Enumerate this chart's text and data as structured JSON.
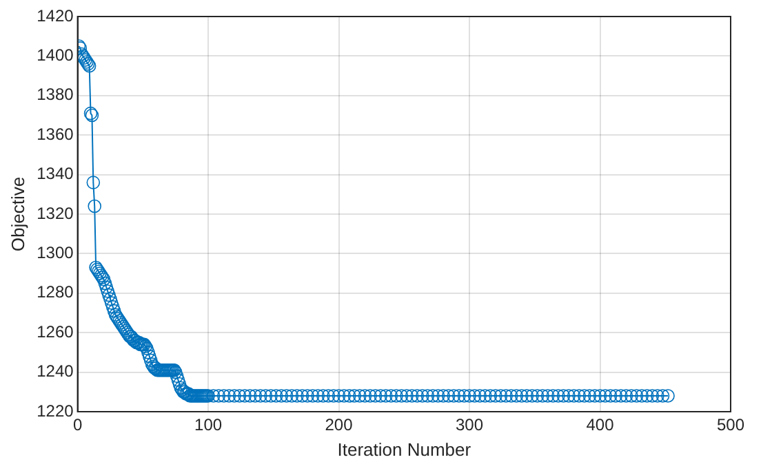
{
  "chart_data": {
    "type": "line",
    "xlabel": "Iteration Number",
    "ylabel": "Objective",
    "xlim": [
      0,
      500
    ],
    "xticks": [
      0,
      100,
      200,
      300,
      400,
      500
    ],
    "ylim": [
      1220,
      1420
    ],
    "yticks": [
      1220,
      1240,
      1260,
      1280,
      1300,
      1320,
      1340,
      1360,
      1380,
      1400,
      1420
    ],
    "grid": true,
    "legend": false,
    "marker": "circle",
    "line_style": "solid",
    "series": [
      {
        "color": "#0072bd",
        "x": [
          1,
          2,
          3,
          4,
          5,
          6,
          7,
          8,
          9,
          10,
          11,
          12,
          13,
          14,
          15,
          16,
          17,
          18,
          19,
          20,
          21,
          22,
          23,
          24,
          25,
          26,
          27,
          28,
          29,
          30,
          31,
          32,
          33,
          34,
          35,
          36,
          37,
          38,
          39,
          40,
          41,
          42,
          43,
          44,
          45,
          46,
          47,
          48,
          49,
          50,
          51,
          52,
          53,
          54,
          55,
          56,
          57,
          58,
          59,
          60,
          61,
          62,
          63,
          64,
          65,
          66,
          67,
          68,
          69,
          70,
          71,
          72,
          73,
          74,
          75,
          76,
          77,
          78,
          79,
          80,
          81,
          82,
          83,
          84,
          85,
          86,
          87,
          88,
          89,
          90,
          91,
          92,
          93,
          94,
          95,
          96,
          97,
          98,
          99,
          100,
          104,
          108,
          112,
          116,
          120,
          124,
          128,
          132,
          136,
          140,
          144,
          148,
          152,
          156,
          160,
          164,
          168,
          172,
          176,
          180,
          184,
          188,
          192,
          196,
          200,
          204,
          208,
          212,
          216,
          220,
          224,
          228,
          232,
          236,
          240,
          244,
          248,
          252,
          256,
          260,
          264,
          268,
          272,
          276,
          280,
          284,
          288,
          292,
          296,
          300,
          304,
          308,
          312,
          316,
          320,
          324,
          328,
          332,
          336,
          340,
          344,
          348,
          352,
          356,
          360,
          364,
          368,
          372,
          376,
          380,
          384,
          388,
          392,
          396,
          400,
          404,
          408,
          412,
          416,
          420,
          424,
          428,
          432,
          436,
          440,
          444,
          448,
          452
        ],
        "values": [
          1405,
          1404,
          1401,
          1400,
          1399,
          1398,
          1397,
          1396,
          1395,
          1371,
          1370,
          1336,
          1324,
          1293,
          1292,
          1291,
          1290,
          1289,
          1288,
          1287,
          1285,
          1283,
          1281,
          1279,
          1277,
          1275,
          1273,
          1271,
          1269,
          1268,
          1267,
          1266,
          1265,
          1264,
          1263,
          1262,
          1261,
          1260,
          1259,
          1258,
          1258,
          1257,
          1256,
          1256,
          1255,
          1255,
          1255,
          1254,
          1254,
          1254,
          1254,
          1253,
          1252,
          1250,
          1248,
          1246,
          1244,
          1243,
          1242,
          1242,
          1241,
          1241,
          1241,
          1241,
          1241,
          1241,
          1241,
          1241,
          1241,
          1241,
          1241,
          1241,
          1241,
          1241,
          1240,
          1238,
          1236,
          1234,
          1232,
          1231,
          1230,
          1230,
          1229,
          1229,
          1229,
          1228,
          1228,
          1228,
          1228,
          1228,
          1228,
          1228,
          1228,
          1228,
          1228,
          1228,
          1228,
          1228,
          1228,
          1228,
          1228,
          1228,
          1228,
          1228,
          1228,
          1228,
          1228,
          1228,
          1228,
          1228,
          1228,
          1228,
          1228,
          1228,
          1228,
          1228,
          1228,
          1228,
          1228,
          1228,
          1228,
          1228,
          1228,
          1228,
          1228,
          1228,
          1228,
          1228,
          1228,
          1228,
          1228,
          1228,
          1228,
          1228,
          1228,
          1228,
          1228,
          1228,
          1228,
          1228,
          1228,
          1228,
          1228,
          1228,
          1228,
          1228,
          1228,
          1228,
          1228,
          1228,
          1228,
          1228,
          1228,
          1228,
          1228,
          1228,
          1228,
          1228,
          1228,
          1228,
          1228,
          1228,
          1228,
          1228,
          1228,
          1228,
          1228,
          1228,
          1228,
          1228,
          1228,
          1228,
          1228,
          1228,
          1228,
          1228,
          1228,
          1228,
          1228,
          1228,
          1228,
          1228,
          1228,
          1228,
          1228,
          1228,
          1228,
          1228
        ]
      }
    ]
  }
}
